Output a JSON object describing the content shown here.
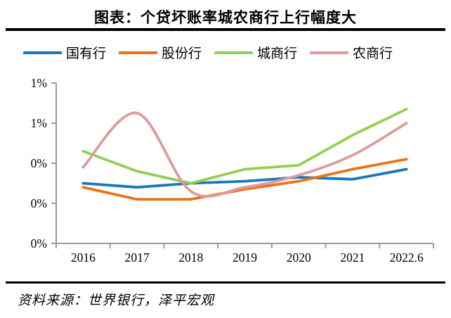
{
  "page": {
    "title": "图表：个贷坏账率城农商行上行幅度大",
    "source": "资料来源：世界银行，泽平宏观"
  },
  "chart_data": {
    "type": "line",
    "title": "图表：个贷坏账率城农商行上行幅度大",
    "categories": [
      "2016",
      "2017",
      "2018",
      "2019",
      "2020",
      "2021",
      "2022.6"
    ],
    "series": [
      {
        "name": "国有行",
        "color": "#1878BE",
        "smooth": false,
        "values": [
          0.3,
          0.28,
          0.3,
          0.31,
          0.33,
          0.32,
          0.37
        ]
      },
      {
        "name": "股份行",
        "color": "#E8731A",
        "smooth": false,
        "values": [
          0.28,
          0.22,
          0.22,
          0.27,
          0.31,
          0.37,
          0.42
        ]
      },
      {
        "name": "城商行",
        "color": "#92D050",
        "smooth": false,
        "values": [
          0.46,
          0.36,
          0.3,
          0.37,
          0.39,
          0.54,
          0.67
        ]
      },
      {
        "name": "农商行",
        "color": "#DE9B9E",
        "smooth": true,
        "values": [
          0.38,
          0.65,
          0.26,
          0.28,
          0.34,
          0.44,
          0.6
        ]
      }
    ],
    "xlabel": "",
    "ylabel": "",
    "unit": "percent",
    "y_axis": {
      "min": 0,
      "max": 0.8,
      "step": 0.2,
      "tick_labels_bottom_to_top": [
        "0%",
        "0%",
        "0%",
        "1%",
        "1%"
      ]
    },
    "grid": false,
    "legend_position": "top",
    "axis_color": "#9B9B9B"
  }
}
